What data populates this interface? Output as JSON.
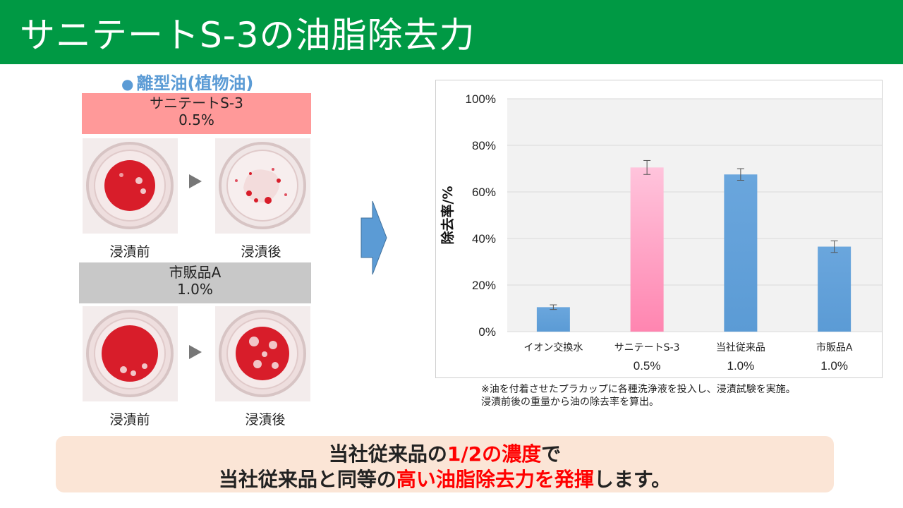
{
  "header": {
    "title": "サニテートS-3の油脂除去力"
  },
  "left": {
    "section_title": "離型油(植物油)",
    "products": [
      {
        "name": "サニテートS-3",
        "concentration": "0.5%",
        "before_label": "浸漬前",
        "after_label": "浸漬後"
      },
      {
        "name": "市販品A",
        "concentration": "1.0%",
        "before_label": "浸漬前",
        "after_label": "浸漬後"
      }
    ]
  },
  "chart_data": {
    "type": "bar",
    "categories": [
      "イオン交換水",
      "サニテートS-3",
      "当社従来品",
      "市販品A"
    ],
    "concentrations": [
      "",
      "0.5%",
      "1.0%",
      "1.0%"
    ],
    "values": [
      10.5,
      70.5,
      67.5,
      36.5
    ],
    "errors": [
      1.0,
      3.0,
      2.5,
      2.5
    ],
    "colors": [
      "#5b9bd5",
      "#ff85b0",
      "#5b9bd5",
      "#5b9bd5"
    ],
    "ylabel": "除去率/%",
    "ylim": [
      0,
      100
    ],
    "yticks": [
      "0%",
      "20%",
      "40%",
      "60%",
      "80%",
      "100%"
    ],
    "grid": true
  },
  "note": {
    "line1": "※油を付着させたプラカップに各種洗浄液を投入し、浸漬試験を実施。",
    "line2": "浸漬前後の重量から油の除去率を算出。"
  },
  "banner": {
    "l1_a": "当社従来品の",
    "l1_b": "1/2の濃度",
    "l1_c": "で",
    "l2_a": "当社従来品と同等の",
    "l2_b": "高い油脂除去力を発揮",
    "l2_c": "します。"
  }
}
